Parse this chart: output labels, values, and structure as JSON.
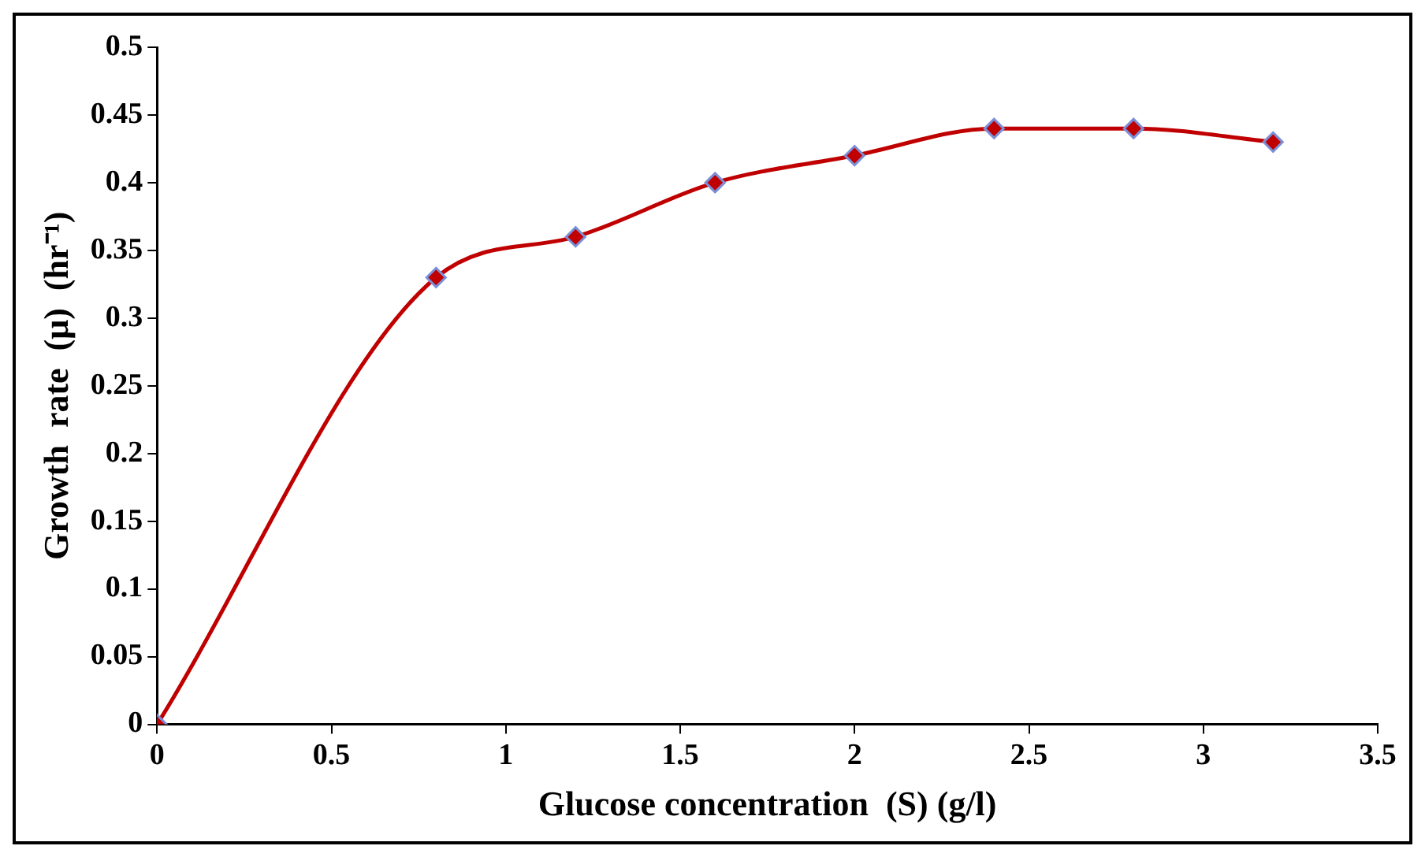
{
  "chart_data": {
    "type": "line",
    "xlabel": "Glucose concentration  (S) (g/l)",
    "ylabel": "Growth  rate  (μ)  (hr⁻¹)",
    "x": [
      0,
      0.8,
      1.2,
      1.6,
      2,
      2.4,
      2.8,
      3.2
    ],
    "series": [
      {
        "color": "#c00000",
        "values": [
          0,
          0.33,
          0.36,
          0.4,
          0.42,
          0.44,
          0.44,
          0.43
        ]
      }
    ],
    "xlim": [
      0,
      3.5
    ],
    "xticks": [
      0,
      0.5,
      1,
      1.5,
      2,
      2.5,
      3,
      3.5
    ],
    "ylim": [
      0,
      0.5
    ],
    "yticks": [
      0,
      0.05,
      0.1,
      0.15,
      0.2,
      0.25,
      0.3,
      0.35,
      0.4,
      0.45,
      0.5
    ],
    "grid": false,
    "legend": false,
    "marker": "diamond",
    "line_style": "solid"
  }
}
